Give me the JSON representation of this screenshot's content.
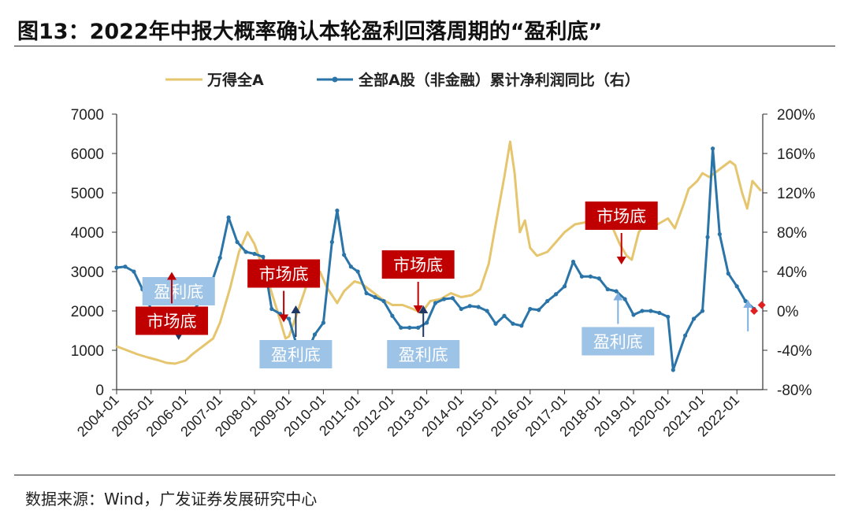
{
  "page": {
    "title": "图13：2022年中报大概率确认本轮盈利回落周期的“盈利底”",
    "source": "数据来源：Wind，广发证券发展研究中心"
  },
  "colors": {
    "index_line": "#E6C56F",
    "profit_line": "#2B74A8",
    "market_bottom_box": "#C00000",
    "profit_bottom_box": "#9DC3E6",
    "red_arrow": "#C00000",
    "navy_arrow": "#1F3864",
    "light_arrow": "#7FB0E0"
  },
  "chart_data": {
    "type": "line",
    "legend_position": "top",
    "grid": false,
    "x_tick_labels": [
      "2004-01",
      "2005-01",
      "2006-01",
      "2007-01",
      "2008-01",
      "2009-01",
      "2010-01",
      "2011-01",
      "2012-01",
      "2013-01",
      "2014-01",
      "2015-01",
      "2016-01",
      "2017-01",
      "2018-01",
      "2019-01",
      "2020-01",
      "2021-01",
      "2022-01"
    ],
    "x_range": [
      2004.0,
      2022.75
    ],
    "y_left": {
      "range": [
        0,
        7000
      ],
      "ticks": [
        "0",
        "1000",
        "2000",
        "3000",
        "4000",
        "5000",
        "6000",
        "7000"
      ]
    },
    "y_right": {
      "range": [
        -80,
        200
      ],
      "ticks": [
        "-80%",
        "-40%",
        "0%",
        "40%",
        "80%",
        "120%",
        "160%",
        "200%"
      ]
    },
    "series": [
      {
        "name": "万得全A",
        "axis": "left",
        "points": [
          [
            2004.0,
            1100
          ],
          [
            2004.3,
            1000
          ],
          [
            2004.6,
            900
          ],
          [
            2004.9,
            820
          ],
          [
            2005.2,
            750
          ],
          [
            2005.45,
            680
          ],
          [
            2005.7,
            660
          ],
          [
            2006.0,
            740
          ],
          [
            2006.2,
            900
          ],
          [
            2006.5,
            1100
          ],
          [
            2006.8,
            1300
          ],
          [
            2007.0,
            1700
          ],
          [
            2007.3,
            2600
          ],
          [
            2007.55,
            3500
          ],
          [
            2007.8,
            4000
          ],
          [
            2008.0,
            3700
          ],
          [
            2008.2,
            3200
          ],
          [
            2008.45,
            2600
          ],
          [
            2008.7,
            1900
          ],
          [
            2008.9,
            1300
          ],
          [
            2009.0,
            1350
          ],
          [
            2009.3,
            2100
          ],
          [
            2009.55,
            2750
          ],
          [
            2009.75,
            2950
          ],
          [
            2009.9,
            3000
          ],
          [
            2010.1,
            2600
          ],
          [
            2010.4,
            2200
          ],
          [
            2010.6,
            2500
          ],
          [
            2010.9,
            2750
          ],
          [
            2011.1,
            2700
          ],
          [
            2011.4,
            2500
          ],
          [
            2011.7,
            2300
          ],
          [
            2012.0,
            2150
          ],
          [
            2012.3,
            2150
          ],
          [
            2012.6,
            2050
          ],
          [
            2012.85,
            1950
          ],
          [
            2013.1,
            2250
          ],
          [
            2013.4,
            2300
          ],
          [
            2013.7,
            2450
          ],
          [
            2014.0,
            2350
          ],
          [
            2014.3,
            2400
          ],
          [
            2014.55,
            2550
          ],
          [
            2014.8,
            3200
          ],
          [
            2015.0,
            4200
          ],
          [
            2015.25,
            5400
          ],
          [
            2015.42,
            6300
          ],
          [
            2015.55,
            5500
          ],
          [
            2015.7,
            4000
          ],
          [
            2015.85,
            4300
          ],
          [
            2016.0,
            3600
          ],
          [
            2016.2,
            3400
          ],
          [
            2016.5,
            3500
          ],
          [
            2016.8,
            3800
          ],
          [
            2017.0,
            4000
          ],
          [
            2017.3,
            4200
          ],
          [
            2017.6,
            4250
          ],
          [
            2017.9,
            4600
          ],
          [
            2018.1,
            4700
          ],
          [
            2018.3,
            4300
          ],
          [
            2018.6,
            3700
          ],
          [
            2018.8,
            3400
          ],
          [
            2018.95,
            3300
          ],
          [
            2019.15,
            4000
          ],
          [
            2019.4,
            4300
          ],
          [
            2019.7,
            4200
          ],
          [
            2020.0,
            4350
          ],
          [
            2020.2,
            4100
          ],
          [
            2020.45,
            4700
          ],
          [
            2020.6,
            5100
          ],
          [
            2020.85,
            5300
          ],
          [
            2021.0,
            5500
          ],
          [
            2021.2,
            5400
          ],
          [
            2021.5,
            5600
          ],
          [
            2021.8,
            5800
          ],
          [
            2021.95,
            5700
          ],
          [
            2022.15,
            5000
          ],
          [
            2022.3,
            4600
          ],
          [
            2022.45,
            5300
          ],
          [
            2022.7,
            5050
          ]
        ]
      },
      {
        "name": "全部A股（非金融）累计净利润同比（右）",
        "axis": "right",
        "points": [
          [
            2004.0,
            44
          ],
          [
            2004.25,
            45
          ],
          [
            2004.5,
            40
          ],
          [
            2004.75,
            22
          ],
          [
            2005.0,
            2
          ],
          [
            2005.25,
            0
          ],
          [
            2005.5,
            -3
          ],
          [
            2005.75,
            -8
          ],
          [
            2006.0,
            -10
          ],
          [
            2006.25,
            2
          ],
          [
            2006.5,
            12
          ],
          [
            2006.75,
            28
          ],
          [
            2007.0,
            54
          ],
          [
            2007.25,
            95
          ],
          [
            2007.5,
            70
          ],
          [
            2007.75,
            60
          ],
          [
            2008.0,
            58
          ],
          [
            2008.25,
            55
          ],
          [
            2008.5,
            2
          ],
          [
            2008.75,
            -3
          ],
          [
            2009.0,
            -8
          ],
          [
            2009.25,
            -38
          ],
          [
            2009.5,
            -45
          ],
          [
            2009.75,
            -24
          ],
          [
            2010.0,
            -12
          ],
          [
            2010.25,
            70
          ],
          [
            2010.4,
            102
          ],
          [
            2010.6,
            57
          ],
          [
            2010.8,
            45
          ],
          [
            2011.0,
            40
          ],
          [
            2011.25,
            18
          ],
          [
            2011.5,
            14
          ],
          [
            2011.75,
            10
          ],
          [
            2012.0,
            -5
          ],
          [
            2012.25,
            -17
          ],
          [
            2012.5,
            -17
          ],
          [
            2012.75,
            -17
          ],
          [
            2013.0,
            -12
          ],
          [
            2013.25,
            8
          ],
          [
            2013.5,
            12
          ],
          [
            2013.75,
            13
          ],
          [
            2014.0,
            2
          ],
          [
            2014.25,
            5
          ],
          [
            2014.5,
            4
          ],
          [
            2014.75,
            0
          ],
          [
            2015.0,
            -13
          ],
          [
            2015.25,
            -5
          ],
          [
            2015.5,
            -13
          ],
          [
            2015.75,
            -15
          ],
          [
            2016.0,
            2
          ],
          [
            2016.25,
            1
          ],
          [
            2016.5,
            10
          ],
          [
            2016.75,
            17
          ],
          [
            2017.0,
            25
          ],
          [
            2017.25,
            50
          ],
          [
            2017.5,
            35
          ],
          [
            2017.75,
            35
          ],
          [
            2018.0,
            33
          ],
          [
            2018.25,
            22
          ],
          [
            2018.5,
            20
          ],
          [
            2018.75,
            12
          ],
          [
            2019.0,
            -4
          ],
          [
            2019.25,
            0
          ],
          [
            2019.5,
            0
          ],
          [
            2019.75,
            -2
          ],
          [
            2020.0,
            -6
          ],
          [
            2020.15,
            -60
          ],
          [
            2020.5,
            -25
          ],
          [
            2020.75,
            -8
          ],
          [
            2021.0,
            0
          ],
          [
            2021.15,
            75
          ],
          [
            2021.3,
            165
          ],
          [
            2021.5,
            78
          ],
          [
            2021.75,
            38
          ],
          [
            2022.0,
            25
          ],
          [
            2022.25,
            10
          ],
          [
            2022.5,
            2
          ]
        ]
      }
    ],
    "endpoint_markers": [
      {
        "x": 2022.5,
        "y": 0,
        "axis": "right"
      },
      {
        "x": 2022.72,
        "y": 6,
        "axis": "right"
      }
    ],
    "annotations": [
      {
        "text": "盈利底",
        "kind": "profit",
        "x": 2005.8,
        "y": 2500,
        "arrow": "down"
      },
      {
        "text": "市场底",
        "kind": "market",
        "x": 2005.6,
        "y": 1750,
        "arrow": "up"
      },
      {
        "text": "市场底",
        "kind": "market",
        "x": 2008.85,
        "y": 2950,
        "arrow": "down"
      },
      {
        "text": "盈利底",
        "kind": "profit",
        "x": 2009.2,
        "y": 900,
        "arrow": "up"
      },
      {
        "text": "市场底",
        "kind": "market",
        "x": 2012.75,
        "y": 3180,
        "arrow": "down"
      },
      {
        "text": "盈利底",
        "kind": "profit",
        "x": 2012.9,
        "y": 900,
        "arrow": "up"
      },
      {
        "text": "市场底",
        "kind": "market",
        "x": 2018.65,
        "y": 4420,
        "arrow": "down"
      },
      {
        "text": "盈利底",
        "kind": "profit",
        "x": 2018.55,
        "y": 1230,
        "arrow": "up"
      },
      {
        "text": "",
        "kind": "profit",
        "x": 2022.32,
        "y": 1400,
        "arrow": "up"
      }
    ]
  }
}
